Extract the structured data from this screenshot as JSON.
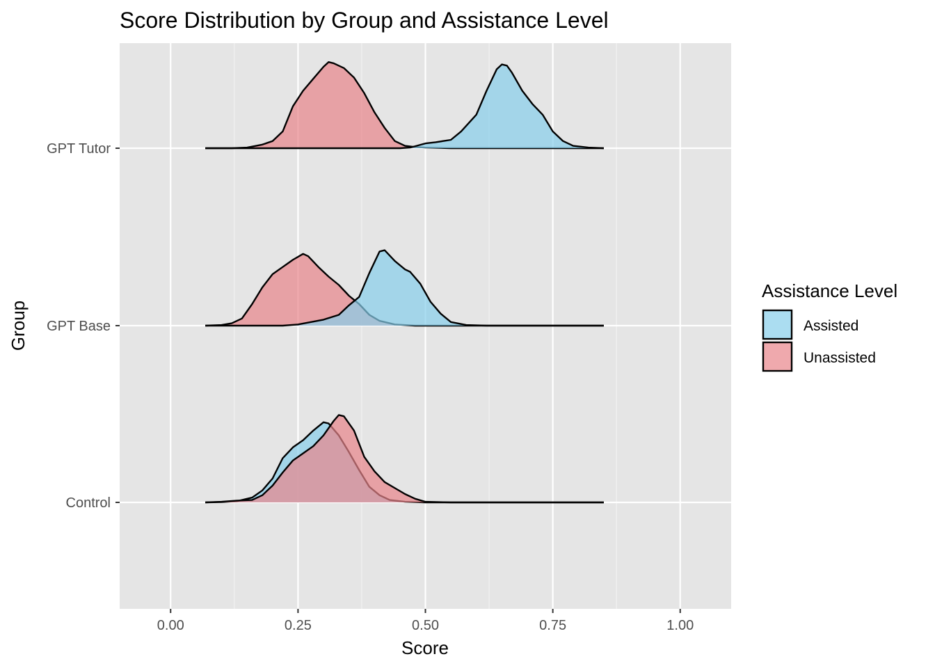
{
  "chart_data": {
    "type": "area",
    "subtype": "ridgeline-density",
    "title": "Score Distribution by Group and Assistance Level",
    "xlabel": "Score",
    "ylabel": "Group",
    "xlim": [
      -0.1,
      1.1
    ],
    "x_ticks": [
      0,
      0.25,
      0.5,
      0.75,
      1
    ],
    "x_tick_labels": [
      "0.00",
      "0.25",
      "0.50",
      "0.75",
      "1.00"
    ],
    "groups": [
      "Control",
      "GPT Base",
      "GPT Tutor"
    ],
    "grid": true,
    "legend": {
      "title": "Assistance Level",
      "position": "right",
      "items": [
        {
          "label": "Assisted",
          "color": "#87ceeb"
        },
        {
          "label": "Unassisted",
          "color": "#e8858a"
        }
      ]
    },
    "colors": {
      "Assisted": "#87ceeb",
      "Unassisted": "#e8858a",
      "panel_background": "#e5e5e5",
      "grid": "#ffffff"
    },
    "series": [
      {
        "group": "GPT Tutor",
        "level": "Unassisted",
        "points": [
          [
            0.068,
            0
          ],
          [
            0.12,
            0
          ],
          [
            0.15,
            0.005
          ],
          [
            0.18,
            0.03
          ],
          [
            0.2,
            0.06
          ],
          [
            0.22,
            0.14
          ],
          [
            0.24,
            0.35
          ],
          [
            0.26,
            0.48
          ],
          [
            0.28,
            0.58
          ],
          [
            0.3,
            0.68
          ],
          [
            0.31,
            0.72
          ],
          [
            0.32,
            0.71
          ],
          [
            0.34,
            0.67
          ],
          [
            0.36,
            0.59
          ],
          [
            0.38,
            0.46
          ],
          [
            0.4,
            0.3
          ],
          [
            0.42,
            0.17
          ],
          [
            0.44,
            0.06
          ],
          [
            0.46,
            0.02
          ],
          [
            0.48,
            0.01
          ],
          [
            0.5,
            0.005
          ],
          [
            0.55,
            0
          ],
          [
            0.85,
            0
          ]
        ]
      },
      {
        "group": "GPT Tutor",
        "level": "Assisted",
        "points": [
          [
            0.068,
            0
          ],
          [
            0.45,
            0
          ],
          [
            0.47,
            0.005
          ],
          [
            0.5,
            0.04
          ],
          [
            0.52,
            0.05
          ],
          [
            0.55,
            0.07
          ],
          [
            0.57,
            0.14
          ],
          [
            0.6,
            0.28
          ],
          [
            0.62,
            0.48
          ],
          [
            0.64,
            0.66
          ],
          [
            0.65,
            0.7
          ],
          [
            0.66,
            0.69
          ],
          [
            0.67,
            0.63
          ],
          [
            0.69,
            0.48
          ],
          [
            0.71,
            0.37
          ],
          [
            0.73,
            0.28
          ],
          [
            0.75,
            0.14
          ],
          [
            0.77,
            0.06
          ],
          [
            0.79,
            0.02
          ],
          [
            0.82,
            0.005
          ],
          [
            0.85,
            0
          ]
        ]
      },
      {
        "group": "GPT Base",
        "level": "Unassisted",
        "points": [
          [
            0.068,
            0
          ],
          [
            0.1,
            0.005
          ],
          [
            0.12,
            0.02
          ],
          [
            0.14,
            0.06
          ],
          [
            0.16,
            0.18
          ],
          [
            0.18,
            0.32
          ],
          [
            0.2,
            0.43
          ],
          [
            0.22,
            0.49
          ],
          [
            0.24,
            0.55
          ],
          [
            0.26,
            0.6
          ],
          [
            0.27,
            0.58
          ],
          [
            0.29,
            0.49
          ],
          [
            0.31,
            0.41
          ],
          [
            0.33,
            0.34
          ],
          [
            0.35,
            0.25
          ],
          [
            0.37,
            0.18
          ],
          [
            0.39,
            0.09
          ],
          [
            0.41,
            0.04
          ],
          [
            0.44,
            0.01
          ],
          [
            0.48,
            0
          ],
          [
            0.85,
            0
          ]
        ]
      },
      {
        "group": "GPT Base",
        "level": "Assisted",
        "points": [
          [
            0.068,
            0
          ],
          [
            0.22,
            0
          ],
          [
            0.25,
            0.01
          ],
          [
            0.3,
            0.05
          ],
          [
            0.33,
            0.09
          ],
          [
            0.35,
            0.17
          ],
          [
            0.37,
            0.24
          ],
          [
            0.39,
            0.44
          ],
          [
            0.41,
            0.62
          ],
          [
            0.42,
            0.63
          ],
          [
            0.44,
            0.54
          ],
          [
            0.46,
            0.47
          ],
          [
            0.47,
            0.45
          ],
          [
            0.49,
            0.35
          ],
          [
            0.51,
            0.2
          ],
          [
            0.53,
            0.1
          ],
          [
            0.55,
            0.03
          ],
          [
            0.58,
            0.005
          ],
          [
            0.62,
            0
          ],
          [
            0.85,
            0
          ]
        ]
      },
      {
        "group": "Control",
        "level": "Assisted",
        "points": [
          [
            0.068,
            0
          ],
          [
            0.1,
            0.003
          ],
          [
            0.13,
            0.01
          ],
          [
            0.16,
            0.04
          ],
          [
            0.18,
            0.1
          ],
          [
            0.2,
            0.2
          ],
          [
            0.22,
            0.37
          ],
          [
            0.24,
            0.46
          ],
          [
            0.26,
            0.52
          ],
          [
            0.28,
            0.6
          ],
          [
            0.3,
            0.67
          ],
          [
            0.31,
            0.66
          ],
          [
            0.33,
            0.56
          ],
          [
            0.35,
            0.42
          ],
          [
            0.37,
            0.27
          ],
          [
            0.39,
            0.13
          ],
          [
            0.41,
            0.06
          ],
          [
            0.43,
            0.02
          ],
          [
            0.46,
            0.005
          ],
          [
            0.5,
            0
          ],
          [
            0.85,
            0
          ]
        ]
      },
      {
        "group": "Control",
        "level": "Unassisted",
        "points": [
          [
            0.068,
            0
          ],
          [
            0.1,
            0.005
          ],
          [
            0.13,
            0.015
          ],
          [
            0.16,
            0.02
          ],
          [
            0.18,
            0.06
          ],
          [
            0.2,
            0.14
          ],
          [
            0.22,
            0.25
          ],
          [
            0.24,
            0.35
          ],
          [
            0.26,
            0.41
          ],
          [
            0.28,
            0.47
          ],
          [
            0.3,
            0.56
          ],
          [
            0.32,
            0.68
          ],
          [
            0.33,
            0.73
          ],
          [
            0.34,
            0.72
          ],
          [
            0.36,
            0.6
          ],
          [
            0.38,
            0.38
          ],
          [
            0.4,
            0.26
          ],
          [
            0.42,
            0.17
          ],
          [
            0.44,
            0.12
          ],
          [
            0.46,
            0.07
          ],
          [
            0.48,
            0.03
          ],
          [
            0.5,
            0.005
          ],
          [
            0.55,
            0
          ],
          [
            0.85,
            0
          ]
        ]
      }
    ]
  }
}
